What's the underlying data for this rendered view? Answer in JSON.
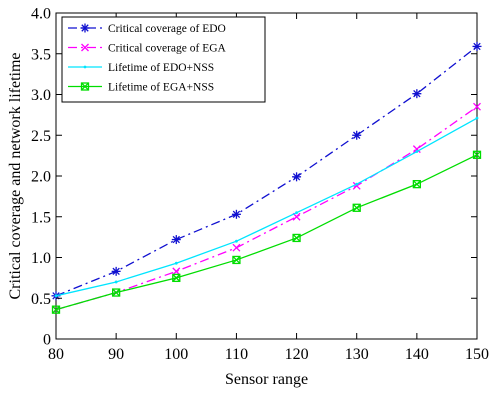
{
  "chart_data": {
    "type": "line",
    "xlabel": "Sensor range",
    "ylabel": "Critical coverage and network lifetime",
    "x": [
      80,
      90,
      100,
      110,
      120,
      130,
      140,
      150
    ],
    "xlim": [
      80,
      150
    ],
    "ylim": [
      0,
      4.0
    ],
    "xticks": [
      "80",
      "90",
      "100",
      "110",
      "120",
      "130",
      "140",
      "150"
    ],
    "yticks": [
      "0",
      "0.5",
      "1.0",
      "1.5",
      "2.0",
      "2.5",
      "3.0",
      "3.5",
      "4.0"
    ],
    "grid": false,
    "legend_position": "top-left",
    "series": [
      {
        "name": "Critical coverage of EDO",
        "color": "#1010d0",
        "line_style": "dash-dot",
        "marker": "star",
        "values": [
          0.53,
          0.83,
          1.22,
          1.53,
          1.99,
          2.5,
          3.01,
          3.59
        ]
      },
      {
        "name": "Critical coverage of EGA",
        "color": "#ff00ff",
        "line_style": "dash-dot",
        "marker": "x",
        "values": [
          0.36,
          0.57,
          0.83,
          1.12,
          1.5,
          1.88,
          2.33,
          2.85
        ]
      },
      {
        "name": "Lifetime of EDO+NSS",
        "color": "#00e5ff",
        "line_style": "solid",
        "marker": "dot",
        "values": [
          0.53,
          0.7,
          0.93,
          1.2,
          1.55,
          1.9,
          2.3,
          2.71
        ]
      },
      {
        "name": "Lifetime of EGA+NSS",
        "color": "#00dd00",
        "line_style": "solid",
        "marker": "box-x",
        "values": [
          0.36,
          0.57,
          0.75,
          0.97,
          1.24,
          1.61,
          1.9,
          2.26
        ]
      }
    ]
  }
}
